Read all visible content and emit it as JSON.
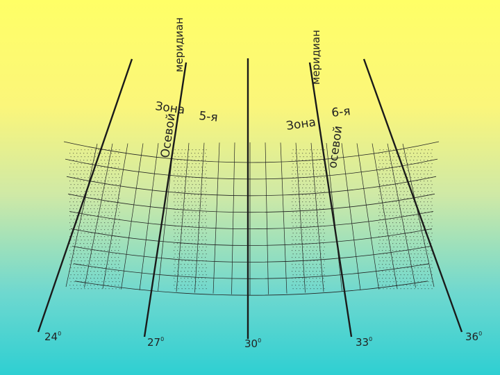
{
  "meridian_labels": {
    "degree_24": "24",
    "degree_27": "27",
    "degree_30": "30",
    "degree_33": "33",
    "degree_36": "36",
    "degree_sign": "0"
  },
  "zone_labels": {
    "zone5_word": "Зона",
    "zone5_number": "5-я",
    "zone6_word": "Зона",
    "zone6_number": "6-я"
  },
  "axial_meridian_labels": {
    "zone5_axial": "Осевой",
    "zone5_meridian": "меридиан",
    "zone6_axial": "осевой",
    "zone6_meridian": "меридиан"
  },
  "colors": {
    "background_top": "#ffff66",
    "background_bottom": "#2ecfd2",
    "lines": "#1a1a1a",
    "grid": "#222222"
  }
}
